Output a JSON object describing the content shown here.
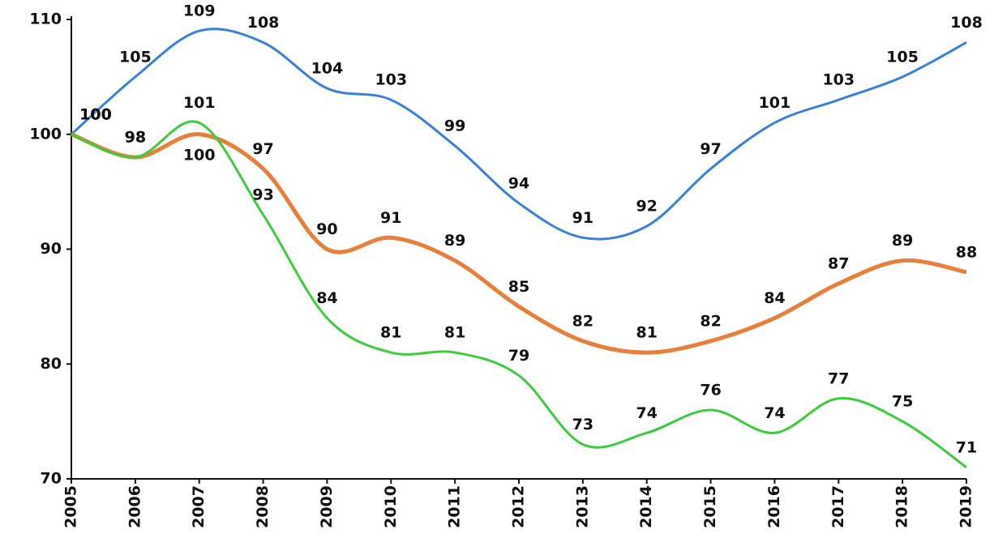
{
  "chart_data": {
    "type": "line",
    "x": [
      2005,
      2006,
      2007,
      2008,
      2009,
      2010,
      2011,
      2012,
      2013,
      2014,
      2015,
      2016,
      2017,
      2018,
      2019
    ],
    "xlim": [
      2005,
      2019
    ],
    "ylim": [
      70,
      110
    ],
    "yticks": [
      70,
      80,
      90,
      100,
      110
    ],
    "grid": false,
    "series": [
      {
        "color": "#3b80dc",
        "values": [
          100,
          105,
          109,
          108,
          104,
          103,
          99,
          94,
          91,
          92,
          97,
          101,
          103,
          105,
          108
        ]
      },
      {
        "color": "#e87f3a",
        "values": [
          100,
          98,
          100,
          97,
          90,
          91,
          89,
          85,
          82,
          81,
          82,
          84,
          87,
          89,
          88
        ]
      },
      {
        "color": "#3dcc3d",
        "values": [
          100,
          98,
          101,
          93,
          84,
          81,
          81,
          79,
          73,
          74,
          76,
          74,
          77,
          75,
          71
        ]
      }
    ]
  }
}
